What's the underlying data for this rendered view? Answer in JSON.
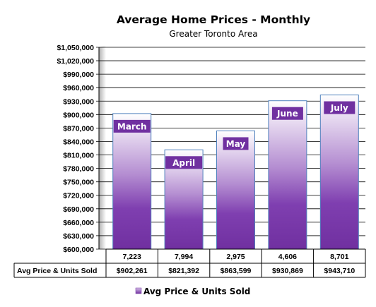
{
  "chart_data": {
    "type": "bar",
    "title": "Average Home Prices - Monthly",
    "subtitle": "Greater Toronto Area",
    "categories": [
      "March",
      "April",
      "May",
      "June",
      "July"
    ],
    "units_sold": [
      "7,223",
      "7,994",
      "2,975",
      "4,606",
      "8,701"
    ],
    "series": [
      {
        "name": "Avg Price & Units Sold",
        "values": [
          902261,
          821392,
          863599,
          930869,
          943710
        ],
        "value_labels": [
          "$902,261",
          "$821,392",
          "$863,599",
          "$930,869",
          "$943,710"
        ]
      }
    ],
    "ylim": [
      600000,
      1050000
    ],
    "yticks": [
      "$600,000",
      "$630,000",
      "$660,000",
      "$690,000",
      "$720,000",
      "$750,000",
      "$780,000",
      "$810,000",
      "$840,000",
      "$870,000",
      "$900,000",
      "$930,000",
      "$960,000",
      "$990,000",
      "$1,020,000",
      "$1,050,000"
    ],
    "ytick_values": [
      600000,
      630000,
      660000,
      690000,
      720000,
      750000,
      780000,
      810000,
      840000,
      870000,
      900000,
      930000,
      960000,
      990000,
      1020000,
      1050000
    ],
    "grid": true,
    "legend_position": "bottom",
    "data_table": true,
    "colors": {
      "bar_dark": "#7030a0",
      "bar_light": "#ffffff",
      "bar_border": "#4f81bd",
      "label_bg": "#7030a0",
      "grid": "#000000"
    }
  }
}
